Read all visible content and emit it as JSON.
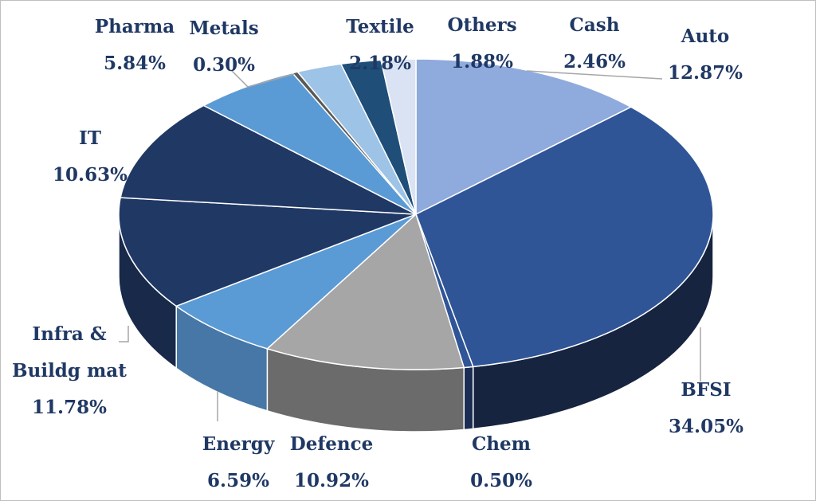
{
  "chart_data": {
    "type": "pie",
    "style": "3d",
    "title": "",
    "legend": "none",
    "slices": [
      {
        "label": "Auto",
        "value": 12.87,
        "value_label": "12.87%",
        "color": "#8faadc",
        "side_color": "#6f88b8"
      },
      {
        "label": "BFSI",
        "value": 34.05,
        "value_label": "34.05%",
        "color": "#2f5597",
        "side_color": "#17243f"
      },
      {
        "label": "Chem",
        "value": 0.5,
        "value_label": "0.50%",
        "color": "#2f5597",
        "side_color": "#1b2d52"
      },
      {
        "label": "Defence",
        "value": 10.92,
        "value_label": "10.92%",
        "color": "#a6a6a6",
        "side_color": "#6b6b6b"
      },
      {
        "label": "Energy",
        "value": 6.59,
        "value_label": "6.59%",
        "color": "#5b9bd5",
        "side_color": "#4677a6"
      },
      {
        "label": "Infra & Buildg mat",
        "label_lines": [
          "Infra &",
          "Buildg mat"
        ],
        "value": 11.78,
        "value_label": "11.78%",
        "color": "#203864",
        "side_color": "#18294a"
      },
      {
        "label": "IT",
        "value": 10.63,
        "value_label": "10.63%",
        "color": "#203864",
        "side_color": "#18294a"
      },
      {
        "label": "Pharma",
        "value": 5.84,
        "value_label": "5.84%",
        "color": "#5b9bd5",
        "side_color": "#4677a6"
      },
      {
        "label": "Metals",
        "value": 0.3,
        "value_label": "0.30%",
        "color": "#595959",
        "side_color": "#404040"
      },
      {
        "label": "Cash",
        "value": 2.46,
        "value_label": "2.46%",
        "color": "#9dc3e6",
        "side_color": "#7ea0c0"
      },
      {
        "label": "Textile",
        "value": 2.18,
        "value_label": "2.18%",
        "color": "#1f4e79",
        "side_color": "#163a5a"
      },
      {
        "label": "Others",
        "value": 1.88,
        "value_label": "1.88%",
        "color": "#dae3f3",
        "side_color": "#b0bdd3"
      }
    ],
    "label_color": "#1f3864"
  }
}
